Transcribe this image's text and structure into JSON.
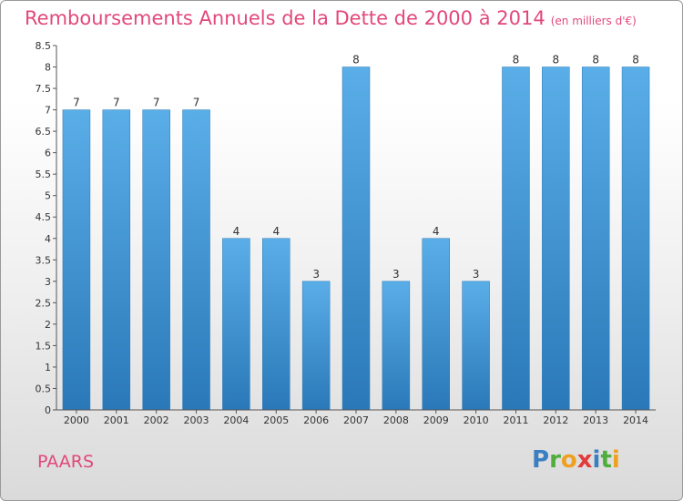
{
  "title": "Remboursements Annuels de la Dette de 2000 à 2014",
  "unit": "(en milliers d'€)",
  "commune": "PAARS",
  "logo": {
    "letters": [
      {
        "ch": "P",
        "color": "#3a7fc1"
      },
      {
        "ch": "r",
        "color": "#4fae3c"
      },
      {
        "ch": "o",
        "color": "#f0a020"
      },
      {
        "ch": "x",
        "color": "#e23b3b"
      },
      {
        "ch": "i",
        "color": "#3a7fc1"
      },
      {
        "ch": "t",
        "color": "#4fae3c"
      },
      {
        "ch": "i",
        "color": "#f0a020"
      }
    ]
  },
  "chart_data": {
    "type": "bar",
    "title": "Remboursements Annuels de la Dette de 2000 à 2014",
    "subtitle": "(en milliers d'€)",
    "categories": [
      "2000",
      "2001",
      "2002",
      "2003",
      "2004",
      "2005",
      "2006",
      "2007",
      "2008",
      "2009",
      "2010",
      "2011",
      "2012",
      "2013",
      "2014"
    ],
    "values": [
      7,
      7,
      7,
      7,
      4,
      4,
      3,
      8,
      3,
      4,
      3,
      8,
      8,
      8,
      8
    ],
    "data_labels": [
      "7",
      "7",
      "7",
      "7",
      "4",
      "4",
      "3",
      "8",
      "3",
      "4",
      "3",
      "8",
      "8",
      "8",
      "8"
    ],
    "ylim": [
      0,
      8.5
    ],
    "yticks": [
      "0",
      "0.5",
      "1",
      "1.5",
      "2",
      "2.5",
      "3",
      "3.5",
      "4",
      "4.5",
      "5",
      "5.5",
      "6",
      "6.5",
      "7",
      "7.5",
      "8",
      "8.5"
    ],
    "grid": false,
    "colors": {
      "bar_light": "#5aaee8",
      "bar_dark": "#2a78b8",
      "axis": "#555555",
      "text": "#333333"
    }
  }
}
